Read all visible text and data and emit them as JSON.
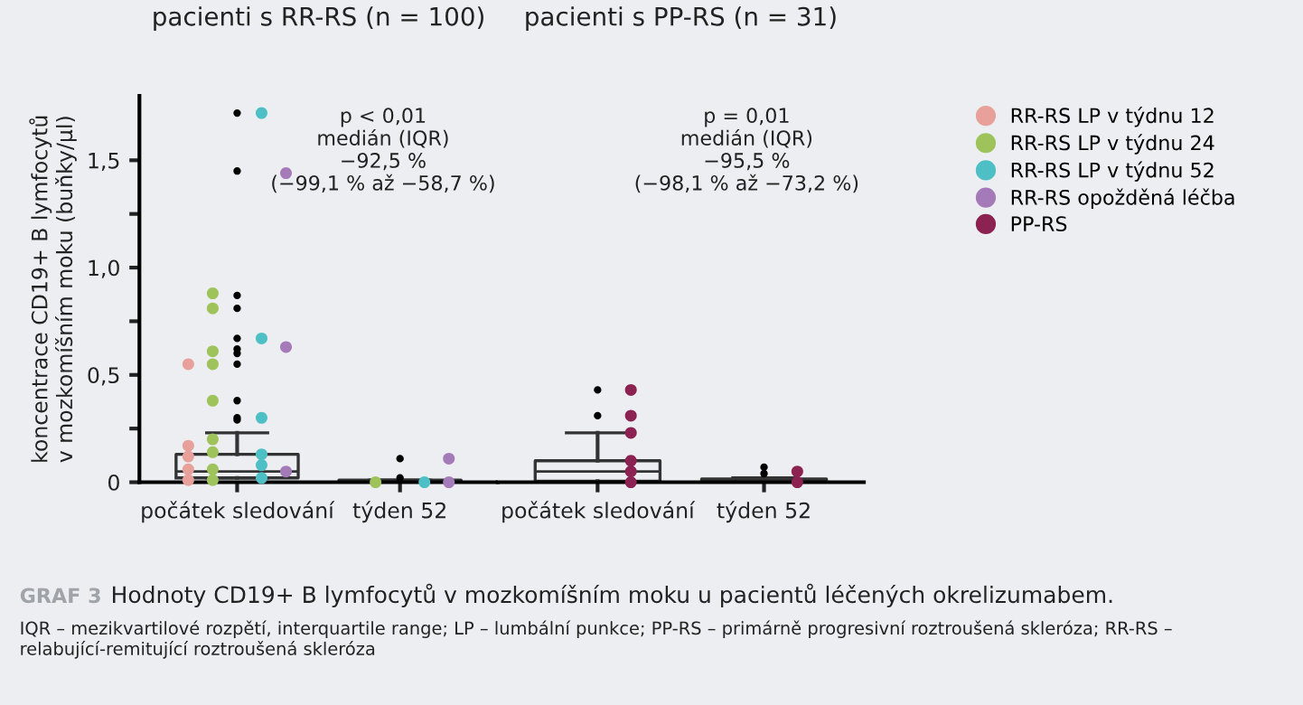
{
  "chart_data": [
    {
      "type": "box",
      "title": "pacienti s RR-RS (n = 100)",
      "ylabel": "koncentrace CD19+ B lymfocytů\nv mozkomíšním moku (buňky/µl)",
      "categories": [
        "počátek sledování",
        "týden 52"
      ],
      "ylim": [
        0,
        1.8
      ],
      "yticks": [
        0,
        {
          "value": 0.25,
          "label": null
        },
        {
          "value": 0.5,
          "label": "0,5"
        },
        {
          "value": 0.75,
          "label": null
        },
        {
          "value": 1.0,
          "label": "1,0"
        },
        {
          "value": 1.25,
          "label": null
        },
        {
          "value": 1.5,
          "label": "1,5"
        }
      ],
      "boxes": [
        {
          "low": 0.02,
          "q1": 0.02,
          "median": 0.05,
          "q3": 0.13,
          "high": 0.23,
          "outliers": [
            0.29,
            0.3,
            0.38,
            0.55,
            0.6,
            0.62,
            0.67,
            0.81,
            0.87,
            1.45,
            1.72
          ]
        },
        {
          "low": 0,
          "q1": 0,
          "median": 0.005,
          "q3": 0.01,
          "high": 0.01,
          "outliers": [
            0.02,
            0.11
          ]
        }
      ],
      "series": [
        {
          "type": "scatter",
          "name": "RR-RS LP v týdnu 12",
          "color": "#e8a09a",
          "x": [
            "počátek sledování",
            "počátek sledování",
            "počátek sledování",
            "počátek sledování",
            "počátek sledování"
          ],
          "values": [
            0.55,
            0.17,
            0.12,
            0.06,
            0.01
          ]
        },
        {
          "type": "scatter",
          "name": "RR-RS LP v týdnu 24",
          "color": "#9dc35a",
          "x": [
            "počátek sledování",
            "počátek sledování",
            "počátek sledování",
            "počátek sledování",
            "počátek sledování",
            "počátek sledování",
            "počátek sledování",
            "počátek sledování",
            "počátek sledování",
            "týden 52"
          ],
          "values": [
            0.88,
            0.81,
            0.61,
            0.55,
            0.38,
            0.2,
            0.14,
            0.06,
            0.01,
            0.0
          ]
        },
        {
          "type": "scatter",
          "name": "RR-RS LP v týdnu 52",
          "color": "#4fbfc6",
          "x": [
            "počátek sledování",
            "počátek sledování",
            "počátek sledování",
            "počátek sledování",
            "počátek sledování",
            "počátek sledování",
            "týden 52"
          ],
          "values": [
            1.72,
            0.67,
            0.3,
            0.13,
            0.08,
            0.02,
            0.0
          ]
        },
        {
          "type": "scatter",
          "name": "RR-RS opožděná léčba",
          "color": "#a57ab8",
          "x": [
            "počátek sledování",
            "počátek sledování",
            "počátek sledování",
            "týden 52",
            "týden 52"
          ],
          "values": [
            1.44,
            0.63,
            0.05,
            0.11,
            0.0
          ]
        }
      ],
      "annotations": [
        "p < 0,01\nmedián (IQR)\n−92,5 %\n(−99,1 % až −58,7 %)",
        "GRAF 3",
        "Hodnoty CD19+ B lymfocytů v mozkomíšním moku u pacientů léčených okrelizumabem.",
        "IQR – mezikvartilové rozpětí, interquartile range; LP – lumbální punkce; PP-RS – primárně progresivní roztroušená skleróza; RR-RS – relabující-remitující roztroušená skleróza"
      ],
      "legend": "right"
    },
    {
      "type": "box",
      "title": "pacienti s PP-RS (n = 31)",
      "categories": [
        "počátek sledování",
        "týden 52"
      ],
      "ylim": [
        0,
        1.8
      ],
      "tick_labels": "x",
      "boxes": [
        {
          "low": 0,
          "q1": 0.005,
          "median": 0.05,
          "q3": 0.1,
          "high": 0.23,
          "outliers": [
            0.31,
            0.43
          ]
        },
        {
          "low": 0,
          "q1": 0,
          "median": 0.005,
          "q3": 0.015,
          "high": 0.02,
          "outliers": [
            0.04,
            0.07
          ]
        }
      ],
      "series": [
        {
          "type": "scatter",
          "name": "PP-RS",
          "color": "#8b2252",
          "x": [
            "počátek sledování",
            "počátek sledování",
            "počátek sledování",
            "počátek sledování",
            "počátek sledování",
            "počátek sledování",
            "týden 52",
            "týden 52"
          ],
          "values": [
            0.43,
            0.31,
            0.23,
            0.1,
            0.05,
            0.0,
            0.05,
            0.0
          ]
        }
      ],
      "annotations": [
        "p = 0,01\nmedián (IQR)\n−95,5 %\n(−98,1 % až −73,2 %)"
      ],
      "legend": "right"
    }
  ]
}
